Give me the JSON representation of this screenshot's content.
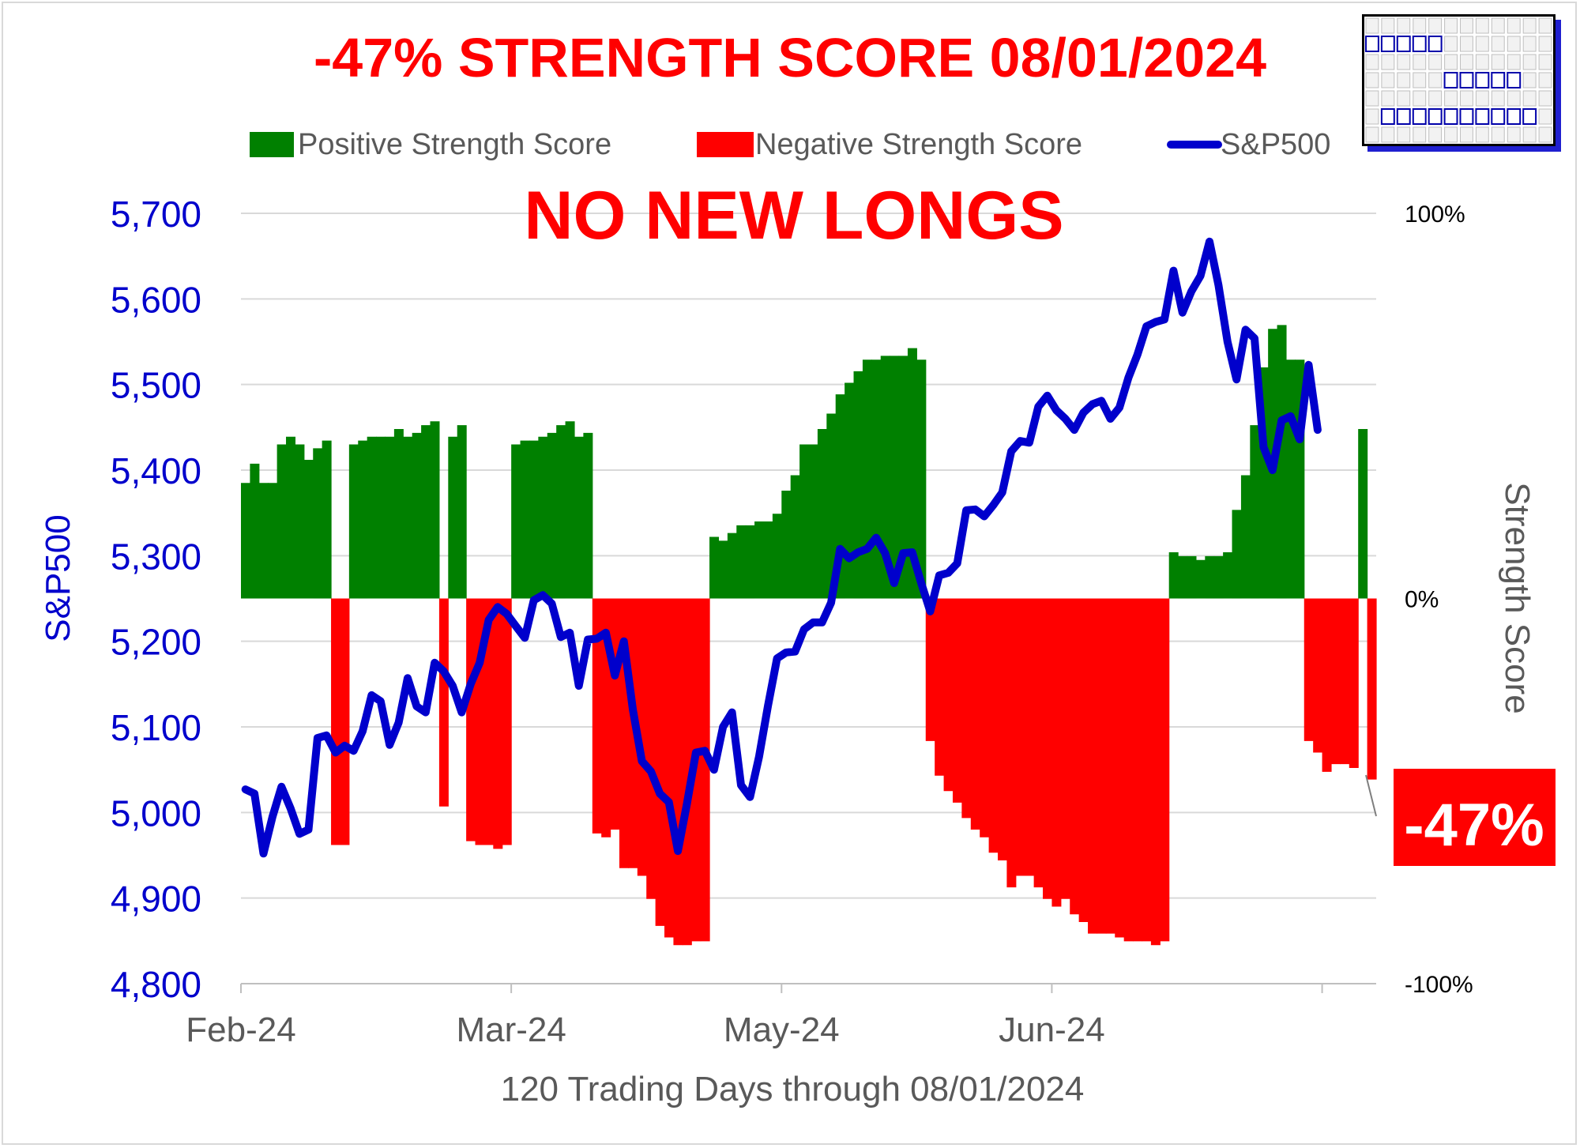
{
  "chart_data": {
    "type": "bar+line",
    "title": "-47% STRENGTH SCORE 08/01/2024",
    "headline": "NO NEW LONGS",
    "callout": "-47%",
    "xlabel": "120 Trading Days through 08/01/2024",
    "ylabel_left": "S&P500",
    "ylabel_right": "Strength Score",
    "x_ticks": [
      "Feb-24",
      "Mar-24",
      "May-24",
      "Jun-24"
    ],
    "x_tick_index": [
      0,
      30,
      60,
      90
    ],
    "y_left": {
      "min": 4800,
      "max": 5700,
      "step": 100,
      "ticks": [
        "4,800",
        "4,900",
        "5,000",
        "5,100",
        "5,200",
        "5,300",
        "5,400",
        "5,500",
        "5,600",
        "5,700"
      ]
    },
    "y_right": {
      "min": -100,
      "max": 100,
      "ticks": [
        "-100%",
        "0%",
        "100%"
      ]
    },
    "grid": true,
    "legend_position": "top",
    "legend": [
      "Positive Strength Score",
      "Negative Strength Score",
      "S&P500"
    ],
    "colors": {
      "positive": "#008000",
      "negative": "#ff0000",
      "sp500": "#0000cc",
      "title": "#ff0000",
      "axis_left": "#0000cc",
      "axis_right": "#595959"
    },
    "strength_score": [
      30,
      35,
      30,
      30,
      40,
      42,
      40,
      36,
      39,
      41,
      -64,
      -64,
      40,
      41,
      42,
      42,
      42,
      44,
      42,
      43,
      45,
      46,
      -54,
      42,
      45,
      -63,
      -64,
      -64,
      -65,
      -64,
      40,
      41,
      41,
      42,
      43,
      45,
      46,
      42,
      43,
      -61,
      -62,
      -60,
      -70,
      -70,
      -72,
      -78,
      -85,
      -88,
      -90,
      -90,
      -89,
      -89,
      16,
      15,
      17,
      19,
      19,
      20,
      20,
      22,
      28,
      32,
      40,
      40,
      44,
      48,
      53,
      56,
      59,
      62,
      62,
      63,
      63,
      63,
      65,
      62,
      -37,
      -46,
      -50,
      -53,
      -57,
      -60,
      -62,
      -66,
      -68,
      -75,
      -72,
      -72,
      -75,
      -78,
      -80,
      -78,
      -82,
      -84,
      -87,
      -87,
      -87,
      -88,
      -89,
      -89,
      -89,
      -90,
      -89,
      12,
      11,
      11,
      10,
      11,
      11,
      12,
      23,
      32,
      45,
      60,
      70,
      71,
      62,
      62,
      -37,
      -40,
      -45,
      -43,
      -43,
      -44,
      44,
      -47
    ],
    "sp500": [
      5027,
      5022,
      4952,
      4995,
      5030,
      5005,
      4975,
      4980,
      5087,
      5090,
      5070,
      5078,
      5072,
      5095,
      5137,
      5130,
      5079,
      5105,
      5157,
      5124,
      5117,
      5175,
      5165,
      5148,
      5117,
      5150,
      5175,
      5225,
      5240,
      5232,
      5218,
      5204,
      5248,
      5254,
      5244,
      5205,
      5210,
      5148,
      5202,
      5203,
      5210,
      5160,
      5200,
      5120,
      5060,
      5048,
      5022,
      5012,
      4955,
      5010,
      5070,
      5072,
      5050,
      5100,
      5117,
      5032,
      5018,
      5065,
      5125,
      5180,
      5187,
      5188,
      5214,
      5222,
      5222,
      5245,
      5308,
      5297,
      5304,
      5308,
      5321,
      5303,
      5268,
      5303,
      5304,
      5268,
      5235,
      5277,
      5280,
      5291,
      5353,
      5354,
      5346,
      5359,
      5374,
      5422,
      5434,
      5432,
      5474,
      5487,
      5470,
      5460,
      5447,
      5467,
      5477,
      5481,
      5460,
      5473,
      5508,
      5535,
      5568,
      5573,
      5576,
      5633,
      5584,
      5609,
      5627,
      5667,
      5616,
      5550,
      5506,
      5564,
      5554,
      5427,
      5400,
      5458,
      5463,
      5436,
      5523,
      5447
    ]
  }
}
